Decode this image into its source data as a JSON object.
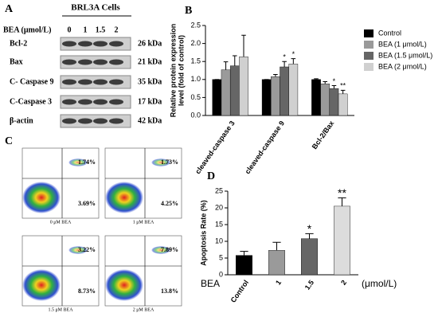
{
  "panel_a": {
    "label": "A",
    "title": "BRL3A Cells",
    "dose_label": "BEA (μmol/L)",
    "doses": [
      "0",
      "1",
      "1.5",
      "2"
    ],
    "proteins": [
      "Bcl-2",
      "Bax",
      "C- Caspase 9",
      "C-Caspase 3",
      "β-actin"
    ],
    "sizes": [
      "26 kDa",
      "21 kDa",
      "35 kDa",
      "17 kDa",
      "42 kDa"
    ]
  },
  "panel_c": {
    "label": "C",
    "plots": [
      {
        "upper": "1.74%",
        "lower": "3.69%",
        "caption": "0 μM BEA"
      },
      {
        "upper": "1.73%",
        "lower": "4.25%",
        "caption": "1 μM BEA"
      },
      {
        "upper": "3.22%",
        "lower": "8.73%",
        "caption": "1.5 μM BEA"
      },
      {
        "upper": "7.89%",
        "lower": "13.8%",
        "caption": "2 μM BEA"
      }
    ]
  },
  "chart_data": [
    {
      "type": "bar",
      "label": "B",
      "ylabel": [
        "Relative protein expression",
        "level (fold of control)"
      ],
      "categories": [
        "cleaved-caspase 3",
        "cleaved-caspase 9",
        "Bcl-2/Bax"
      ],
      "series": [
        {
          "name": "Control",
          "color": "#000000",
          "values": [
            1.0,
            1.0,
            1.0
          ],
          "errors": [
            0.0,
            0.0,
            0.02
          ],
          "significance": [
            null,
            null,
            null
          ]
        },
        {
          "name": "BEA (1 μmol/L)",
          "color": "#9a9a9a",
          "values": [
            1.27,
            1.08,
            0.88
          ],
          "errors": [
            0.22,
            0.06,
            0.06
          ],
          "significance": [
            null,
            null,
            null
          ]
        },
        {
          "name": "BEA (1.5 μmol/L)",
          "color": "#666666",
          "values": [
            1.38,
            1.35,
            0.75
          ],
          "errors": [
            0.28,
            0.15,
            0.08
          ],
          "significance": [
            null,
            "*",
            "*"
          ]
        },
        {
          "name": "BEA (2 μmol/L)",
          "color": "#d0d0d0",
          "values": [
            1.63,
            1.43,
            0.6
          ],
          "errors": [
            0.6,
            0.15,
            0.1
          ],
          "significance": [
            null,
            "*",
            "**"
          ]
        }
      ],
      "ylim": [
        0,
        2.5
      ],
      "yticks": [
        {
          "value": 0,
          "label": "0.0"
        },
        {
          "value": 0.5,
          "label": "0.5"
        },
        {
          "value": 1,
          "label": "1.0"
        },
        {
          "value": 1.5,
          "label": "1.5"
        },
        {
          "value": 2,
          "label": "2.0"
        },
        {
          "value": 2.5,
          "label": "2.5"
        }
      ]
    },
    {
      "type": "bar",
      "label": "D",
      "ylabel": [
        "Apoptosis Rate (%)"
      ],
      "xlabel": "BEA",
      "xunit": "(μmol/L)",
      "categories": [
        "Control",
        "1",
        "1.5",
        "2"
      ],
      "series": [
        {
          "colors": [
            "#000000",
            "#9a9a9a",
            "#666666",
            "#dcdcdc"
          ],
          "values": [
            5.8,
            7.3,
            10.8,
            20.5
          ],
          "errors": [
            1.2,
            2.4,
            1.5,
            2.5
          ],
          "significance": [
            null,
            null,
            "*",
            "**"
          ]
        }
      ],
      "ylim": [
        0,
        25
      ],
      "yticks": [
        0,
        5,
        10,
        15,
        20,
        25
      ]
    }
  ]
}
